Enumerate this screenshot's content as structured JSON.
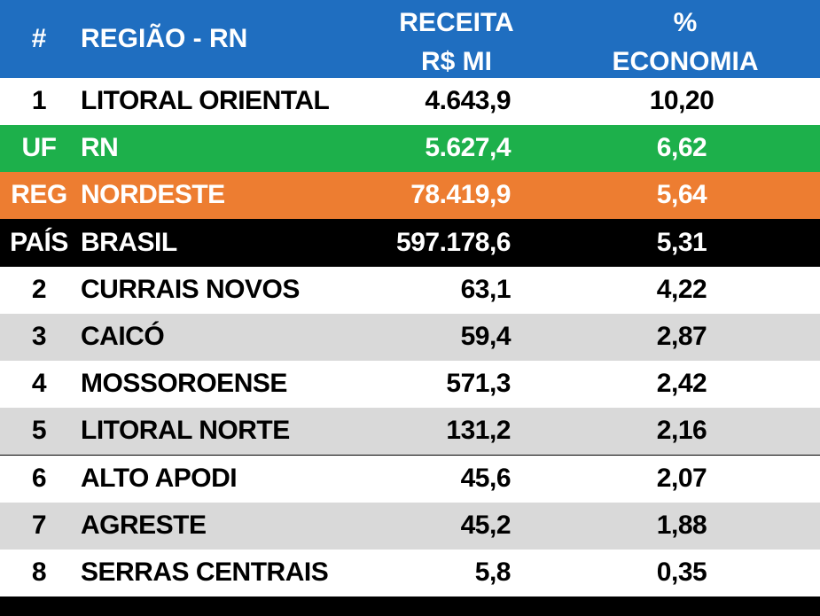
{
  "colors": {
    "header_bg": "#1F6EC0",
    "white_row": "#FFFFFF",
    "gray_row": "#D9D9D9",
    "uf_row": "#1DB04B",
    "reg_row": "#ED7D31",
    "pais_row": "#000000",
    "text_dark": "#000000",
    "text_light": "#FFFFFF"
  },
  "header": {
    "num": "#",
    "region": "REGIÃO - RN",
    "revenue_line1": "RECEITA",
    "revenue_line2": "R$ MI",
    "economy_line1": "%",
    "economy_line2": "ECONOMIA"
  },
  "rows": [
    {
      "num": "1",
      "region": "LITORAL ORIENTAL",
      "revenue": "4.643,9",
      "economy": "10,20",
      "style": "white"
    },
    {
      "num": "UF",
      "region": "RN",
      "revenue": "5.627,4",
      "economy": "6,62",
      "style": "uf"
    },
    {
      "num": "REG",
      "region": "NORDESTE",
      "revenue": "78.419,9",
      "economy": "5,64",
      "style": "reg"
    },
    {
      "num": "PAÍS",
      "region": "BRASIL",
      "revenue": "597.178,6",
      "economy": "5,31",
      "style": "pais"
    },
    {
      "num": "2",
      "region": "CURRAIS NOVOS",
      "revenue": "63,1",
      "economy": "4,22",
      "style": "white"
    },
    {
      "num": "3",
      "region": "CAICÓ",
      "revenue": "59,4",
      "economy": "2,87",
      "style": "gray"
    },
    {
      "num": "4",
      "region": "MOSSOROENSE",
      "revenue": "571,3",
      "economy": "2,42",
      "style": "white"
    },
    {
      "num": "5",
      "region": "LITORAL NORTE",
      "revenue": "131,2",
      "economy": "2,16",
      "style": "gray"
    },
    {
      "num": "6",
      "region": "ALTO APODI",
      "revenue": "45,6",
      "economy": "2,07",
      "style": "white"
    },
    {
      "num": "7",
      "region": "AGRESTE",
      "revenue": "45,2",
      "economy": "1,88",
      "style": "gray"
    },
    {
      "num": "8",
      "region": "SERRAS CENTRAIS",
      "revenue": "5,8",
      "economy": "0,35",
      "style": "white"
    }
  ]
}
